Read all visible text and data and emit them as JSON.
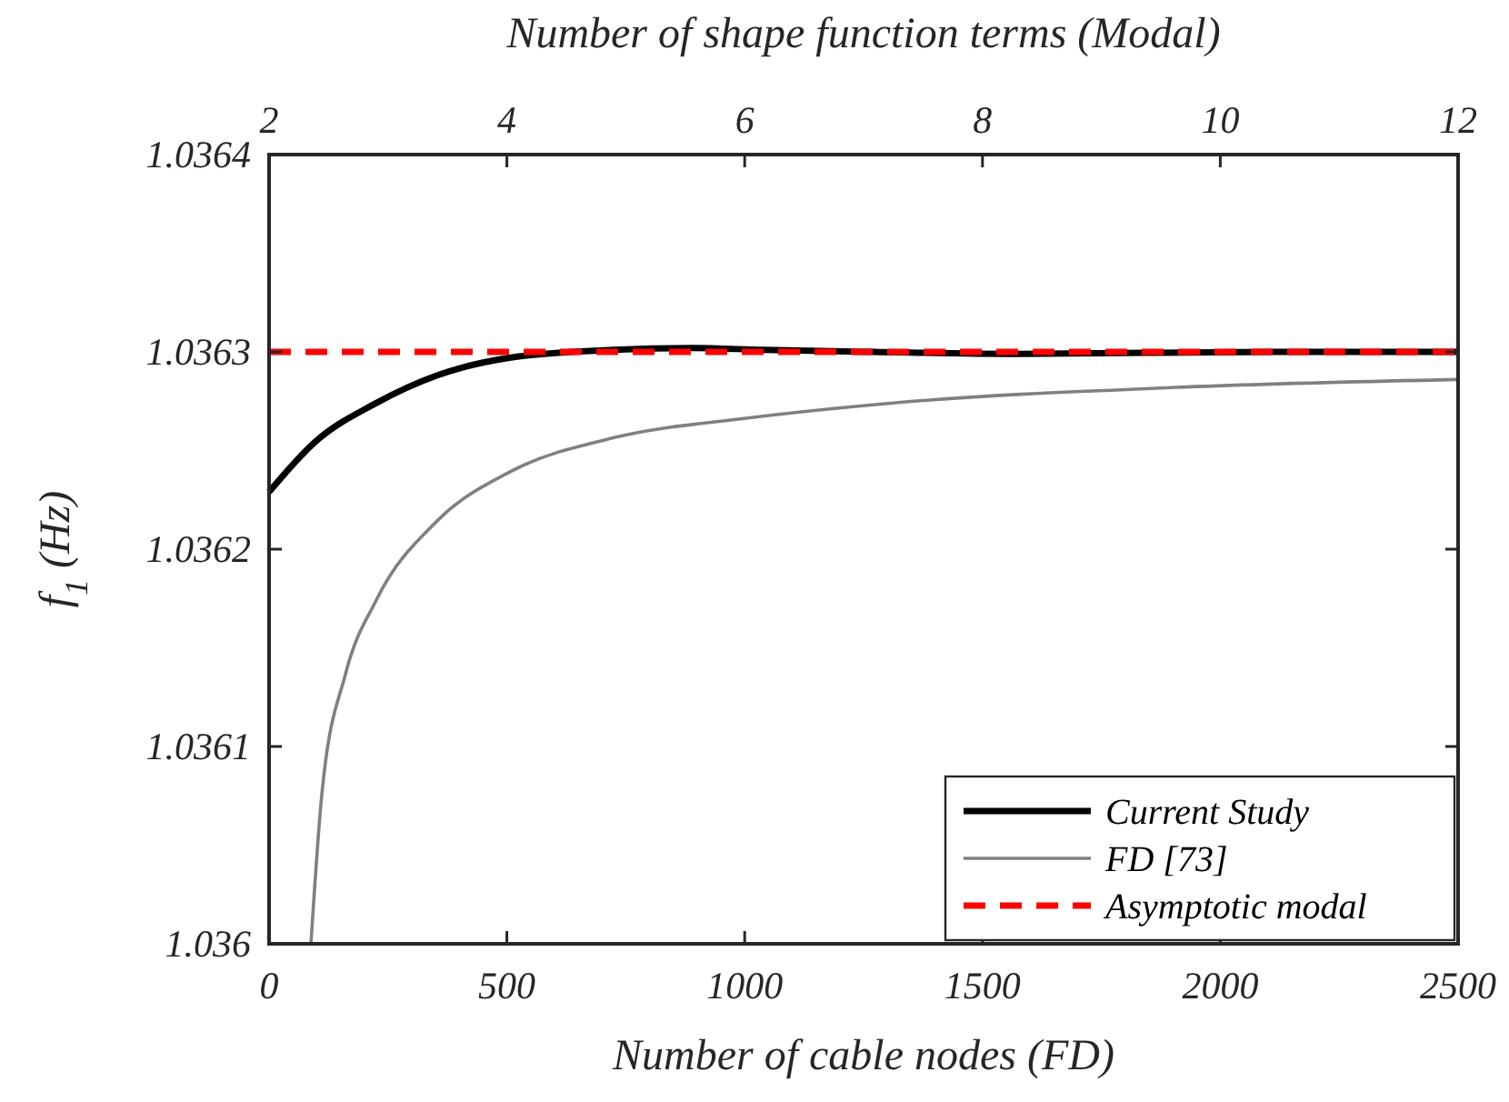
{
  "chart_data": {
    "type": "line",
    "xlabel": "Number of cable nodes (FD)",
    "x2label": "Number of shape function terms (Modal)",
    "ylabel": "f$_{1}$ (Hz)",
    "xlim": [
      0,
      2500
    ],
    "xticks": [
      0,
      500,
      1000,
      1500,
      2000,
      2500
    ],
    "x2lim": [
      2,
      12
    ],
    "x2ticks": [
      2,
      4,
      6,
      8,
      10,
      12
    ],
    "ylim": [
      1.036,
      1.0364
    ],
    "yticks": [
      1.036,
      1.0361,
      1.0362,
      1.0363,
      1.0364
    ],
    "grid": false,
    "legend": "bottom right",
    "series": [
      {
        "name": "Current Study",
        "color": "#000000",
        "axis": "x2",
        "line_style": "solid",
        "x": [
          2,
          2.38,
          2.9,
          3.41,
          4.02,
          4.89,
          5.55,
          6.16,
          7.08,
          8.3,
          10.44,
          12
        ],
        "values": [
          1.036229,
          1.036254,
          1.036274,
          1.036288,
          1.036297,
          1.036301,
          1.036302,
          1.036301,
          1.0363,
          1.036299,
          1.0363,
          1.0363
        ]
      },
      {
        "name": "FD [73]",
        "color": "#808080",
        "line_style": "solid",
        "x": [
          88,
          111,
          161,
          225,
          352,
          505,
          734,
          990,
          1307,
          1907,
          2500
        ],
        "values": [
          1.036,
          1.036076,
          1.036137,
          1.036174,
          1.036214,
          1.036239,
          1.036257,
          1.036266,
          1.036274,
          1.036282,
          1.036286
        ]
      },
      {
        "name": "Asymptotic modal",
        "color": "#ff0000",
        "line_style": "dashed",
        "x": [
          0,
          2500
        ],
        "values": [
          1.0363,
          1.0363
        ]
      }
    ]
  }
}
